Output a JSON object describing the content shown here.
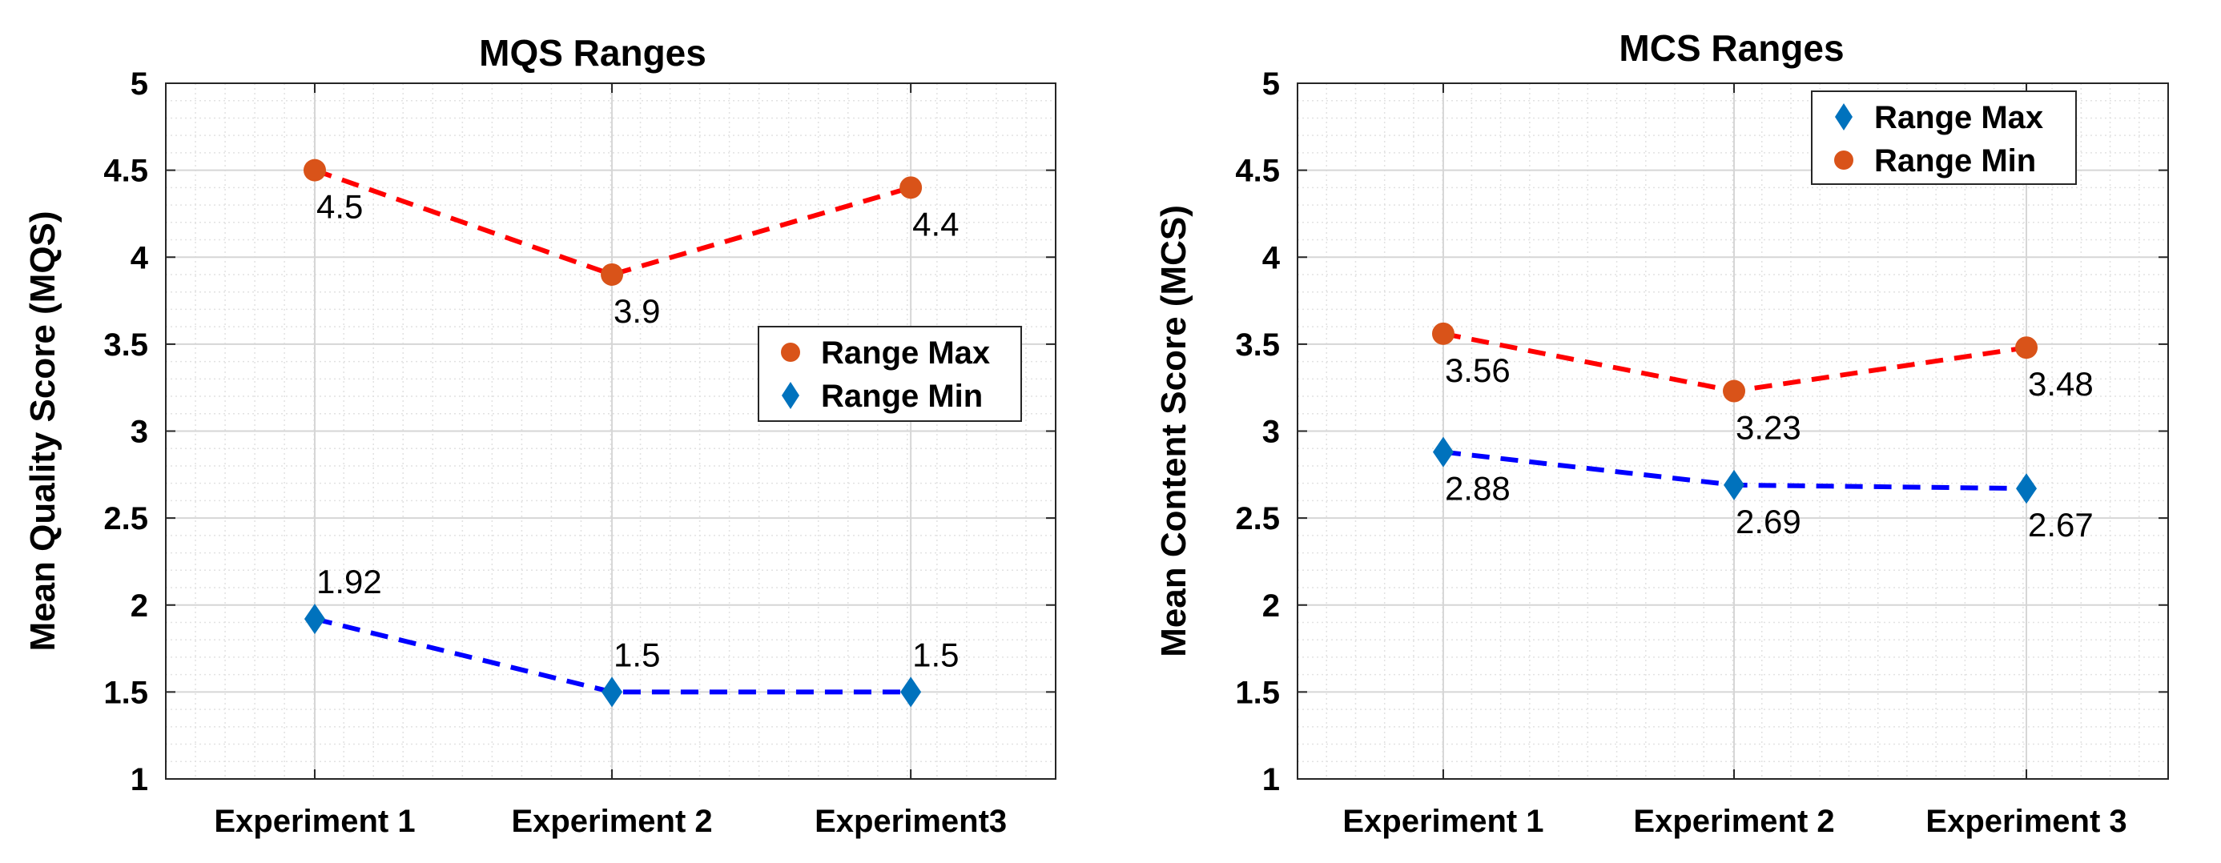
{
  "chart_data": [
    {
      "type": "line",
      "title": "MQS Ranges",
      "xlabel": "",
      "ylabel": "Mean Quality Score (MQS)",
      "categories": [
        "Experiment 1",
        "Experiment 2",
        "Experiment3"
      ],
      "ylim": [
        1,
        5
      ],
      "yticks": [
        "1",
        "1.5",
        "2",
        "2.5",
        "3",
        "3.5",
        "4",
        "4.5",
        "5"
      ],
      "grid": true,
      "legend_position": "center-right",
      "series": [
        {
          "name": "Range Max",
          "values": [
            4.5,
            3.9,
            4.4
          ],
          "labels": [
            "4.5",
            "3.9",
            "4.4"
          ],
          "label_position": "below",
          "marker": "circle",
          "marker_color": "#D95319",
          "line_color": "#FF0000"
        },
        {
          "name": "Range Min",
          "values": [
            1.92,
            1.5,
            1.5
          ],
          "labels": [
            "1.92",
            "1.5",
            "1.5"
          ],
          "label_position": "above",
          "marker": "diamond",
          "marker_color": "#0072BD",
          "line_color": "#0000FF"
        }
      ]
    },
    {
      "type": "line",
      "title": "MCS Ranges",
      "xlabel": "",
      "ylabel": "Mean Content Score (MCS)",
      "categories": [
        "Experiment 1",
        "Experiment 2",
        "Experiment 3"
      ],
      "ylim": [
        1,
        5
      ],
      "yticks": [
        "1",
        "1.5",
        "2",
        "2.5",
        "3",
        "3.5",
        "4",
        "4.5",
        "5"
      ],
      "grid": true,
      "legend_position": "top-right",
      "series": [
        {
          "name": "Range Max",
          "values": [
            2.88,
            2.69,
            2.67
          ],
          "labels": [
            "2.88",
            "2.69",
            "2.67"
          ],
          "label_position": "below",
          "marker": "diamond",
          "marker_color": "#0072BD",
          "line_color": "#0000FF"
        },
        {
          "name": "Range Min",
          "values": [
            3.56,
            3.23,
            3.48
          ],
          "labels": [
            "3.56",
            "3.23",
            "3.48"
          ],
          "label_position": "below",
          "marker": "circle",
          "marker_color": "#D95319",
          "line_color": "#FF0000"
        }
      ]
    }
  ]
}
